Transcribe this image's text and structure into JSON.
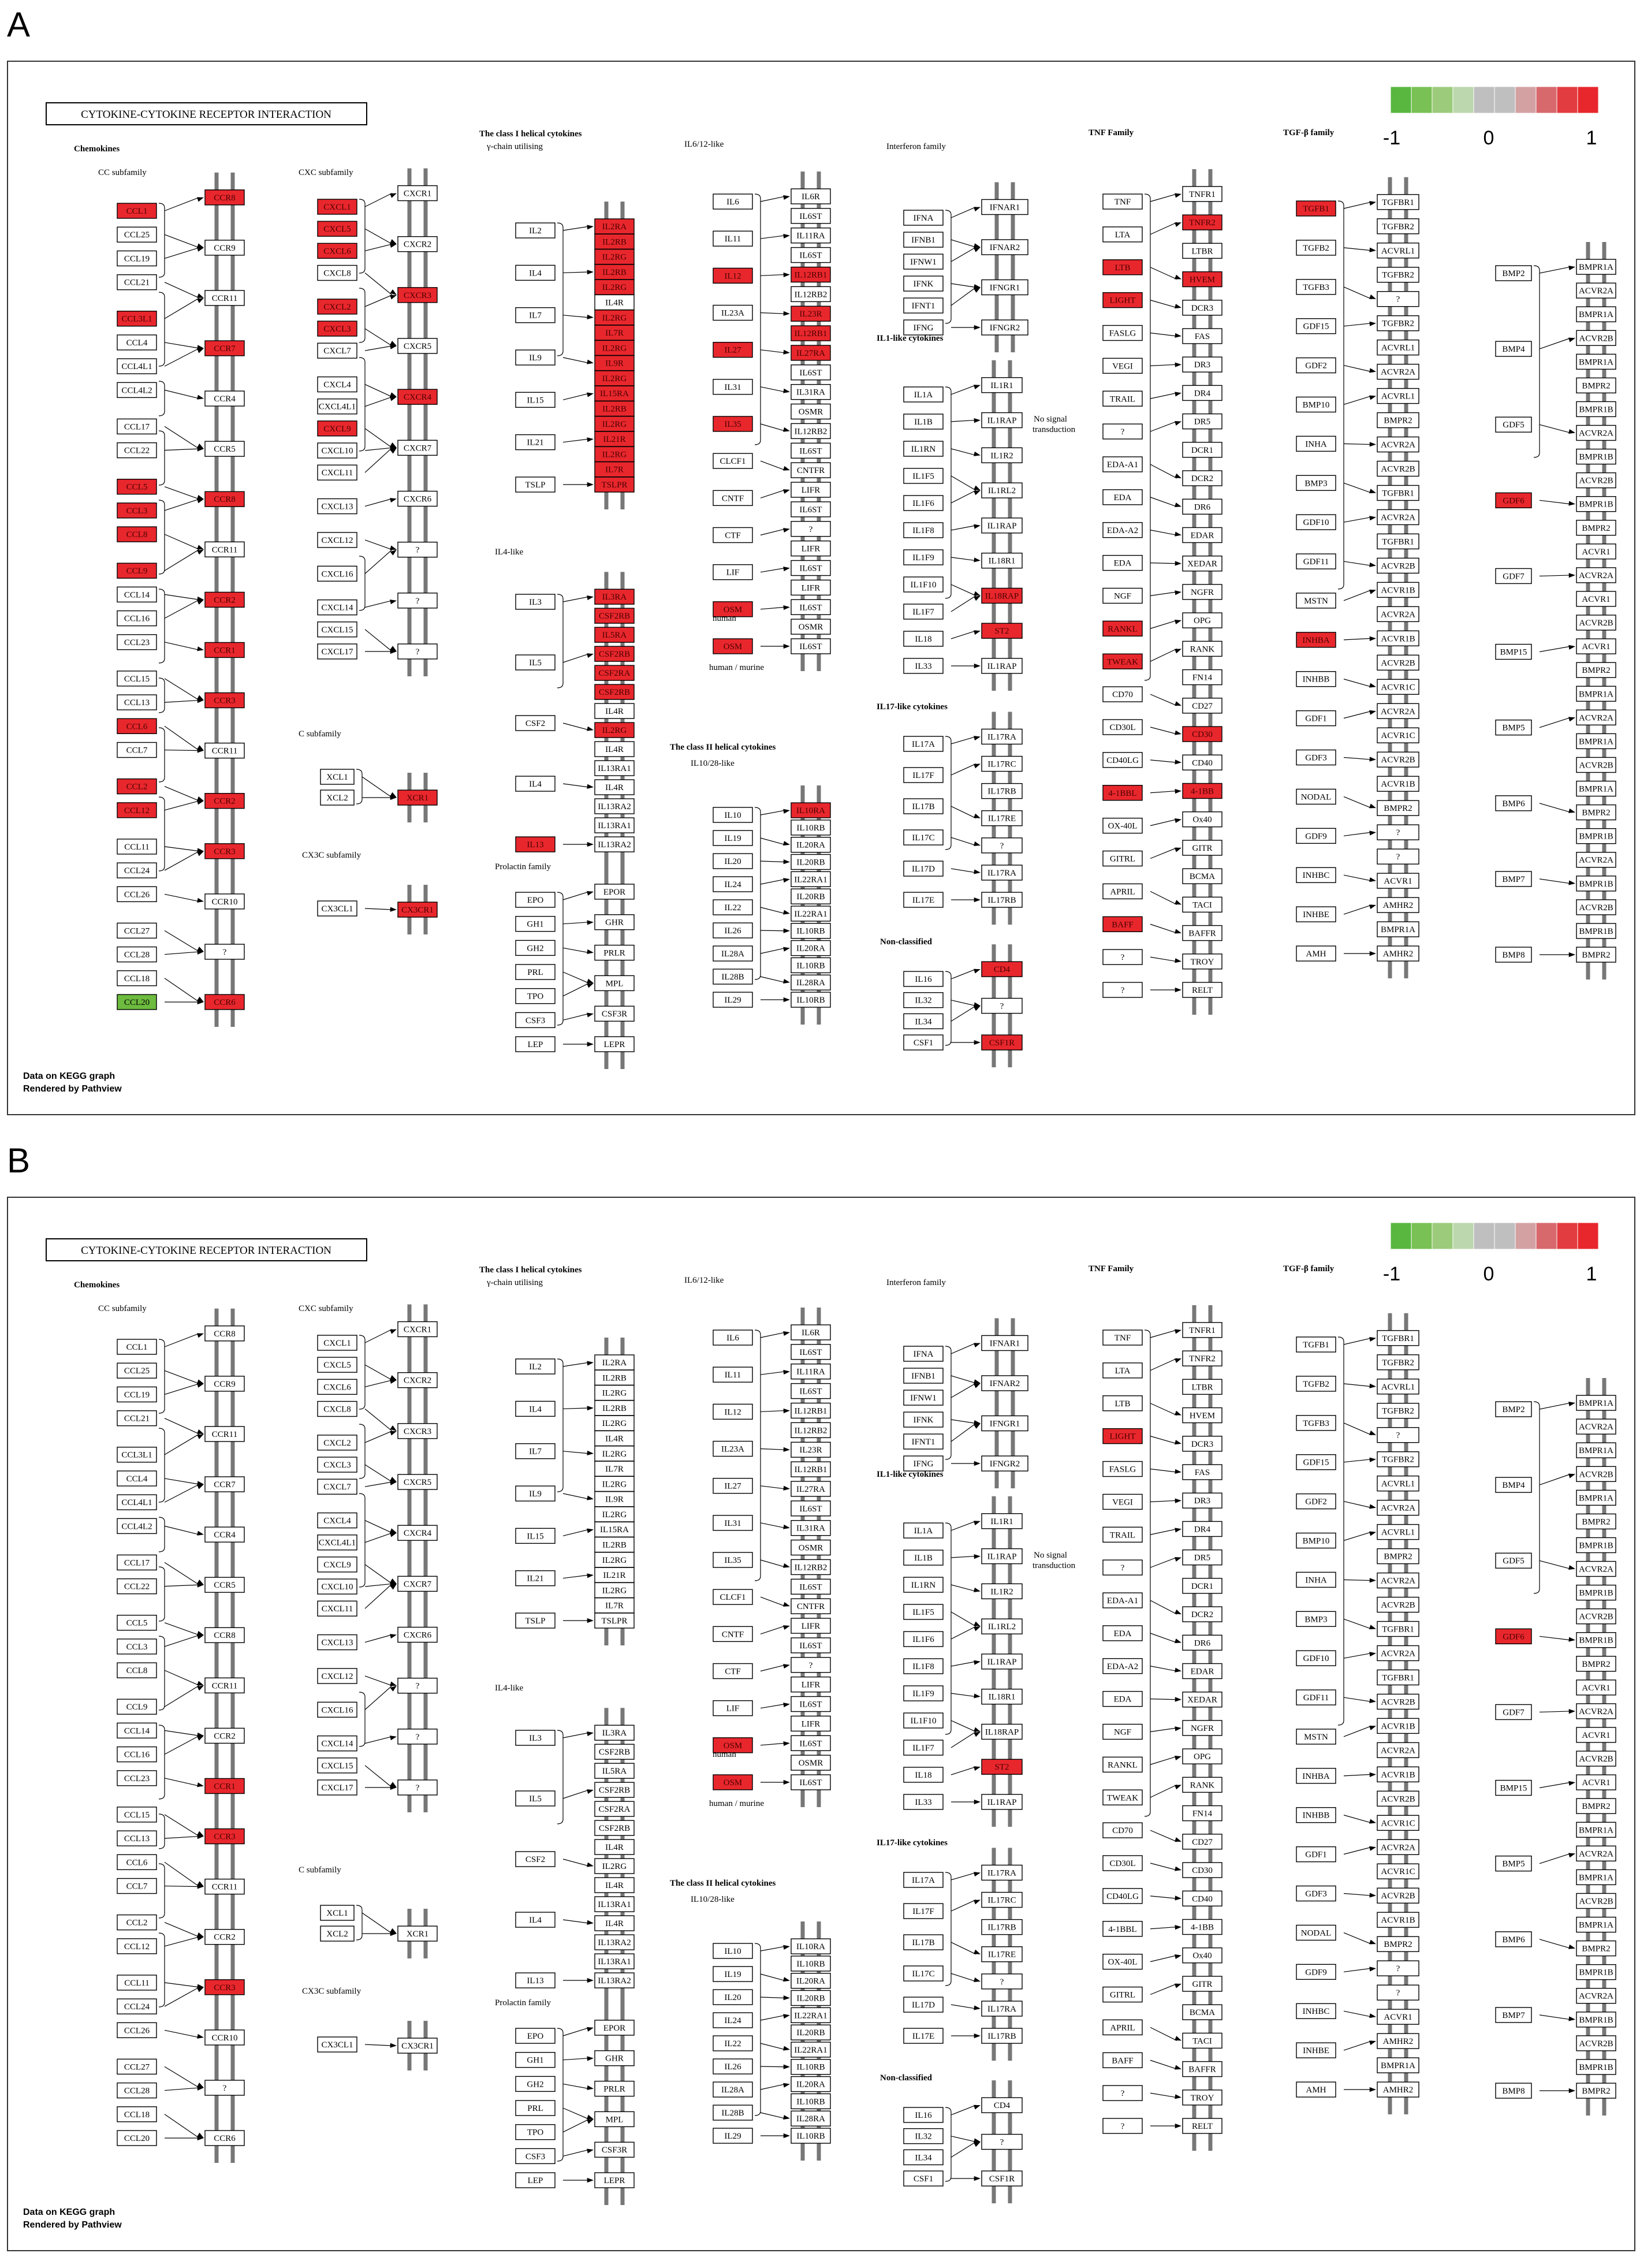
{
  "colors": {
    "up": "#e8272d",
    "down": "#6dbb3f",
    "none": "#ffffff",
    "membrane": "#777777"
  },
  "panels": [
    {
      "letter": "A",
      "title": "CYTOKINE-CYTOKINE RECEPTOR INTERACTION",
      "footer_line1": "Data on KEGG graph",
      "footer_line2": "Rendered by Pathview",
      "red": [
        "CCR7",
        "CCL3L1",
        "CCR6",
        "CCL5",
        "CCR8",
        "CCL3",
        "CCL8",
        "CCR2",
        "CCL9",
        "CCR1",
        "CCR3",
        "CCL6",
        "CCL2",
        "CCL12",
        "CCL1",
        "CXCL1",
        "CXCL5",
        "CXCL6",
        "CXCL2",
        "CXCL3",
        "CXCL9",
        "CXCR3",
        "CXCR4",
        "XCR1",
        "CX3CR1",
        "IL2RA",
        "IL2RB",
        "IL2RG",
        "IL2RB2",
        "IL2RG2",
        "IL7R",
        "IL2RG3",
        "IL9R",
        "IL2RG4",
        "IL15RA",
        "IL2RB3",
        "IL2RG5",
        "IL21R",
        "IL2RG6",
        "IL7R2",
        "TSLPR",
        "IL3RA",
        "CSF2RB",
        "IL5RA",
        "CSF2RB2",
        "CSF2RA",
        "CSF2RB3",
        "IL13",
        "IL12",
        "IL12RB1",
        "IL23R",
        "IL12RB1b",
        "IL27",
        "IL27RA",
        "IL35",
        "IL18RAP",
        "ST2",
        "OSM",
        "OSM2",
        "IL10RA",
        "TNFR2",
        "LTB",
        "HVEM",
        "LIGHT",
        "RANKL",
        "TWEAK",
        "CD30",
        "4-1BBL",
        "4-1BB",
        "BAFF",
        "CD4",
        "CSF1R",
        "CSF1R2",
        "TGFB1",
        "INHBA",
        "GDF6"
      ],
      "green": [
        "CCL20"
      ]
    },
    {
      "letter": "B",
      "title": "CYTOKINE-CYTOKINE RECEPTOR INTERACTION",
      "footer_line1": "Data on KEGG graph",
      "footer_line2": "Rendered by Pathview",
      "red": [
        "CCR3",
        "CCR3b",
        "CCR1",
        "LIGHT",
        "OSM",
        "OSM2",
        "ST2",
        "GDF6"
      ],
      "green": []
    }
  ],
  "legend": {
    "ticks": [
      "-1",
      "0",
      "1"
    ],
    "colors": [
      "#59b740",
      "#79c155",
      "#9ccb7c",
      "#bcd7ad",
      "#bfbfbf",
      "#bfbfbf",
      "#d4a1a3",
      "#d7696d",
      "#e33c40",
      "#e8272d"
    ]
  },
  "headers": [
    {
      "id": "chemokines",
      "text": "Chemokines",
      "bold": true
    },
    {
      "id": "cc",
      "text": "CC subfamily",
      "bold": false
    },
    {
      "id": "cxc",
      "text": "CXC subfamily",
      "bold": false
    },
    {
      "id": "c",
      "text": "C subfamily",
      "bold": false
    },
    {
      "id": "cx3c",
      "text": "CX3C subfamily",
      "bold": false
    },
    {
      "id": "classI",
      "text": "The class I helical cytokines",
      "bold": true
    },
    {
      "id": "gamma",
      "text": "γ-chain utilising",
      "bold": false
    },
    {
      "id": "il4like",
      "text": "IL4-like",
      "bold": false
    },
    {
      "id": "prolactin",
      "text": "Prolactin family",
      "bold": false
    },
    {
      "id": "il6",
      "text": "IL6/12-like",
      "bold": false
    },
    {
      "id": "classII",
      "text": "The class II helical cytokines",
      "bold": true
    },
    {
      "id": "il10",
      "text": "IL10/28-like",
      "bold": false
    },
    {
      "id": "ifn",
      "text": "Interferon family",
      "bold": false
    },
    {
      "id": "il1",
      "text": "IL1-like cytokines",
      "bold": true
    },
    {
      "id": "nosignal",
      "text": "No signal",
      "bold": false
    },
    {
      "id": "transduction",
      "text": "transduction",
      "bold": false
    },
    {
      "id": "il17",
      "text": "IL17-like cytokines",
      "bold": true
    },
    {
      "id": "nonclass",
      "text": "Non-classified",
      "bold": true
    },
    {
      "id": "tnf",
      "text": "TNF Family",
      "bold": true
    },
    {
      "id": "tgf",
      "text": "TGF-β family",
      "bold": true
    },
    {
      "id": "human",
      "text": "human",
      "bold": false
    },
    {
      "id": "humanmurine",
      "text": "human / murine",
      "bold": false
    }
  ],
  "columns": [
    {
      "id": "cc",
      "ligands": [
        [
          "CCL1",
          "CCL25",
          "CCL19",
          "CCL21"
        ],
        [
          "CCL3L1",
          "CCL4",
          "CCL4L1",
          "CCL4L2"
        ],
        [
          "CCL17",
          "CCL22"
        ],
        [
          "CCL5",
          "CCL3",
          "CCL8"
        ],
        [
          "CCL9",
          "CCL14",
          "CCL16",
          "CCL23"
        ],
        [
          "CCL15",
          "CCL13",
          "CCL6",
          "CCL7"
        ],
        [
          "CCL2",
          "CCL12"
        ],
        [
          "CCL11",
          "CCL24",
          "CCL26"
        ],
        [
          "CCL27",
          "CCL28",
          "CCL18",
          "CCL20"
        ]
      ],
      "receptors": [
        [
          "CCR8",
          "CCR9",
          "CCR11",
          "CCR7"
        ],
        [
          "CCR4",
          "CCR5",
          "CCR8",
          "CCR11",
          "CCR2"
        ],
        [
          "CCR1",
          "CCR3",
          "CCR11",
          "CCR2"
        ],
        [
          "CCR3",
          "CCR10",
          "?",
          "CCR6"
        ]
      ]
    },
    {
      "id": "cxc",
      "ligands": [
        [
          "CXCL1",
          "CXCL5",
          "CXCL6",
          "CXCL8"
        ],
        [
          "CXCL2",
          "CXCL3",
          "CXCL7"
        ],
        [
          "CXCL4",
          "CXCL4L1",
          "CXCL9",
          "CXCL10",
          "CXCL11"
        ],
        [
          "CXCL13"
        ],
        [
          "CXCL12"
        ],
        [
          "CXCL16"
        ],
        [
          "CXCL14",
          "CXCL15",
          "CXCL17"
        ]
      ],
      "receptors": [
        [
          "CXCR1",
          "CXCR2",
          "CXCR3",
          "CXCR5",
          "CXCR4",
          "CXCR7",
          "CXCR6",
          "?",
          "?",
          "?"
        ]
      ]
    },
    {
      "id": "c",
      "ligands": [
        [
          "XCL1",
          "XCL2"
        ]
      ],
      "receptors": [
        [
          "XCR1"
        ]
      ]
    },
    {
      "id": "cx3c",
      "ligands": [
        [
          "CX3CL1"
        ]
      ],
      "receptors": [
        [
          "CX3CR1"
        ]
      ]
    },
    {
      "id": "gamma",
      "ligands": [
        [
          "IL2",
          "IL4",
          "IL7",
          "IL9",
          "IL15",
          "IL21",
          "TSLP"
        ]
      ],
      "receptors": [
        [
          "IL2RA",
          "IL2RB",
          "IL2RG",
          "IL2RB",
          "IL2RG",
          "IL4R",
          "IL2RG",
          "IL7R",
          "IL2RG",
          "IL9R",
          "IL2RG",
          "IL15RA",
          "IL2RB",
          "IL2RG",
          "IL21R",
          "IL2RG",
          "IL7R",
          "TSLPR"
        ]
      ]
    },
    {
      "id": "il4like",
      "ligands": [
        [
          "IL3",
          "IL5",
          "CSF2",
          "IL4",
          "IL13"
        ]
      ],
      "receptors": [
        [
          "IL3RA",
          "CSF2RB",
          "IL5RA",
          "CSF2RB",
          "CSF2RA",
          "CSF2RB",
          "IL4R",
          "IL2RG",
          "IL4R",
          "IL13RA1",
          "IL4R",
          "IL13RA2",
          "IL13RA1",
          "IL13RA2"
        ]
      ]
    },
    {
      "id": "prolactin",
      "ligands": [
        [
          "EPO",
          "GH1",
          "GH2",
          "PRL",
          "TPO",
          "CSF3",
          "LEP"
        ]
      ],
      "receptors": [
        [
          "EPOR",
          "GHR",
          "PRLR",
          "MPL",
          "CSF3R",
          "LEPR"
        ]
      ]
    },
    {
      "id": "il6",
      "ligands": [
        [
          "IL6",
          "IL11",
          "IL12",
          "IL23A",
          "IL27",
          "IL31",
          "IL35",
          "CLCF1",
          "CNTF",
          "CTF",
          "LIF",
          "OSM",
          "OSM"
        ]
      ],
      "receptors": [
        [
          "IL6R",
          "IL6ST",
          "IL11RA",
          "IL6ST",
          "IL12RB1",
          "IL12RB2",
          "IL23R",
          "IL12RB1",
          "IL27RA",
          "IL6ST",
          "IL31RA",
          "OSMR",
          "IL12RB2",
          "IL6ST",
          "CNTFR",
          "LIFR",
          "IL6ST",
          "?",
          "LIFR",
          "IL6ST",
          "LIFR",
          "IL6ST",
          "OSMR",
          "IL6ST"
        ]
      ]
    },
    {
      "id": "il10",
      "ligands": [
        [
          "IL10",
          "IL19",
          "IL20",
          "IL24",
          "IL22",
          "IL26",
          "IL28A",
          "IL28B",
          "IL29"
        ]
      ],
      "receptors": [
        [
          "IL10RA",
          "IL10RB",
          "IL20RA",
          "IL20RB",
          "IL22RA1",
          "IL20RB",
          "IL22RA1",
          "IL10RB",
          "IL20RA",
          "IL10RB",
          "IL28RA",
          "IL10RB"
        ]
      ]
    },
    {
      "id": "ifn",
      "ligands": [
        [
          "IFNA",
          "IFNB1",
          "IFNW1",
          "IFNK",
          "IFNT1",
          "IFNG"
        ]
      ],
      "receptors": [
        [
          "IFNAR1",
          "IFNAR2",
          "IFNGR1",
          "IFNGR2"
        ]
      ]
    },
    {
      "id": "il1",
      "ligands": [
        [
          "IL1A",
          "IL1B",
          "IL1RN",
          "IL1F5",
          "IL1F6",
          "IL1F8",
          "IL1F9",
          "IL1F10",
          "IL1F7",
          "IL18",
          "IL33"
        ]
      ],
      "receptors": [
        [
          "IL1R1",
          "IL1RAP",
          "IL1R2",
          "IL1RL2",
          "IL1RAP",
          "IL18R1",
          "IL18RAP",
          "ST2",
          "IL1RAP"
        ]
      ]
    },
    {
      "id": "il17",
      "ligands": [
        [
          "IL17A",
          "IL17F",
          "IL17B",
          "IL17C",
          "IL17D",
          "IL17E"
        ]
      ],
      "receptors": [
        [
          "IL17RA",
          "IL17RC",
          "IL17RB",
          "IL17RE",
          "?",
          "IL17RA",
          "IL17RB"
        ]
      ]
    },
    {
      "id": "nonclass",
      "ligands": [
        [
          "IL16",
          "IL32",
          "IL34",
          "CSF1"
        ]
      ],
      "receptors": [
        [
          "CD4",
          "?",
          "CSF1R"
        ]
      ]
    },
    {
      "id": "tnf",
      "ligands": [
        [
          "TNF",
          "LTA",
          "LTB",
          "LIGHT",
          "FASLG",
          "VEGI",
          "TRAIL",
          "?",
          "EDA-A1",
          "EDA",
          "EDA-A2",
          "EDA",
          "NGF",
          "RANKL",
          "TWEAK",
          "CD70",
          "CD30L",
          "CD40LG",
          "4-1BBL",
          "OX-40L",
          "GITRL",
          "APRIL",
          "BAFF",
          "?",
          "?"
        ]
      ],
      "receptors": [
        [
          "TNFR1",
          "TNFR2",
          "LTBR",
          "HVEM",
          "DCR3",
          "FAS",
          "DR3",
          "DR4",
          "DR5",
          "DCR1",
          "DCR2",
          "DR6",
          "EDAR",
          "XEDAR",
          "NGFR",
          "OPG",
          "RANK",
          "FN14",
          "CD27",
          "CD30",
          "CD40",
          "4-1BB",
          "Ox40",
          "GITR",
          "BCMA",
          "TACI",
          "BAFFR",
          "TROY",
          "RELT"
        ]
      ]
    },
    {
      "id": "tgf",
      "ligands": [
        [
          "TGFB1",
          "TGFB2",
          "TGFB3",
          "GDF15",
          "GDF2",
          "BMP10",
          "INHA",
          "BMP3",
          "GDF10",
          "GDF11",
          "MSTN",
          "INHBA",
          "INHBB",
          "GDF1",
          "GDF3",
          "NODAL",
          "GDF9",
          "INHBC",
          "INHBE",
          "AMH"
        ]
      ],
      "receptors": [
        [
          "TGFBR1",
          "TGFBR2",
          "ACVRL1",
          "TGFBR2",
          "?",
          "TGFBR2",
          "ACVRL1",
          "ACVR2A",
          "ACVRL1",
          "BMPR2",
          "ACVR2A",
          "ACVR2B",
          "TGFBR1",
          "ACVR2A",
          "TGFBR1",
          "ACVR2B",
          "ACVR1B",
          "ACVR2A",
          "ACVR1B",
          "ACVR2B",
          "ACVR1C",
          "ACVR2A",
          "ACVR1C",
          "ACVR2B",
          "ACVR1B",
          "BMPR2",
          "?",
          "?",
          "ACVR1",
          "AMHR2",
          "BMPR1A",
          "AMHR2"
        ]
      ]
    },
    {
      "id": "bmp",
      "ligands": [
        [
          "BMP2",
          "BMP4",
          "GDF5",
          "GDF6",
          "GDF7",
          "BMP15",
          "BMP5",
          "BMP6",
          "BMP7",
          "BMP8"
        ]
      ],
      "receptors": [
        [
          "BMPR1A",
          "ACVR2A",
          "BMPR1A",
          "ACVR2B",
          "BMPR1A",
          "BMPR2",
          "BMPR1B",
          "ACVR2A",
          "BMPR1B",
          "ACVR2B",
          "BMPR1B",
          "BMPR2",
          "ACVR1",
          "ACVR2A",
          "ACVR1",
          "ACVR2B",
          "ACVR1",
          "BMPR2",
          "BMPR1A",
          "ACVR2A",
          "BMPR1A",
          "ACVR2B",
          "BMPR1A",
          "BMPR2",
          "BMPR1B",
          "ACVR2A",
          "BMPR1B",
          "ACVR2B",
          "BMPR1B",
          "BMPR2"
        ]
      ]
    }
  ]
}
